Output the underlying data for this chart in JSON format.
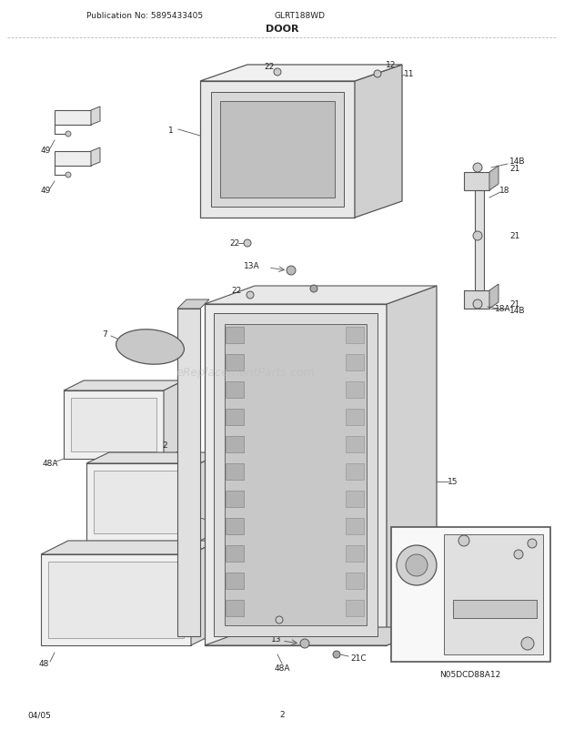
{
  "title": "DOOR",
  "model": "GLRT188WD",
  "pub_no": "Publication No: 5895433405",
  "date": "04/05",
  "page": "2",
  "watermark": "eReplacementParts.com",
  "diagram_id": "N05DCD88A12",
  "bg_color": "#ffffff",
  "lc": "#555555",
  "tc": "#222222"
}
